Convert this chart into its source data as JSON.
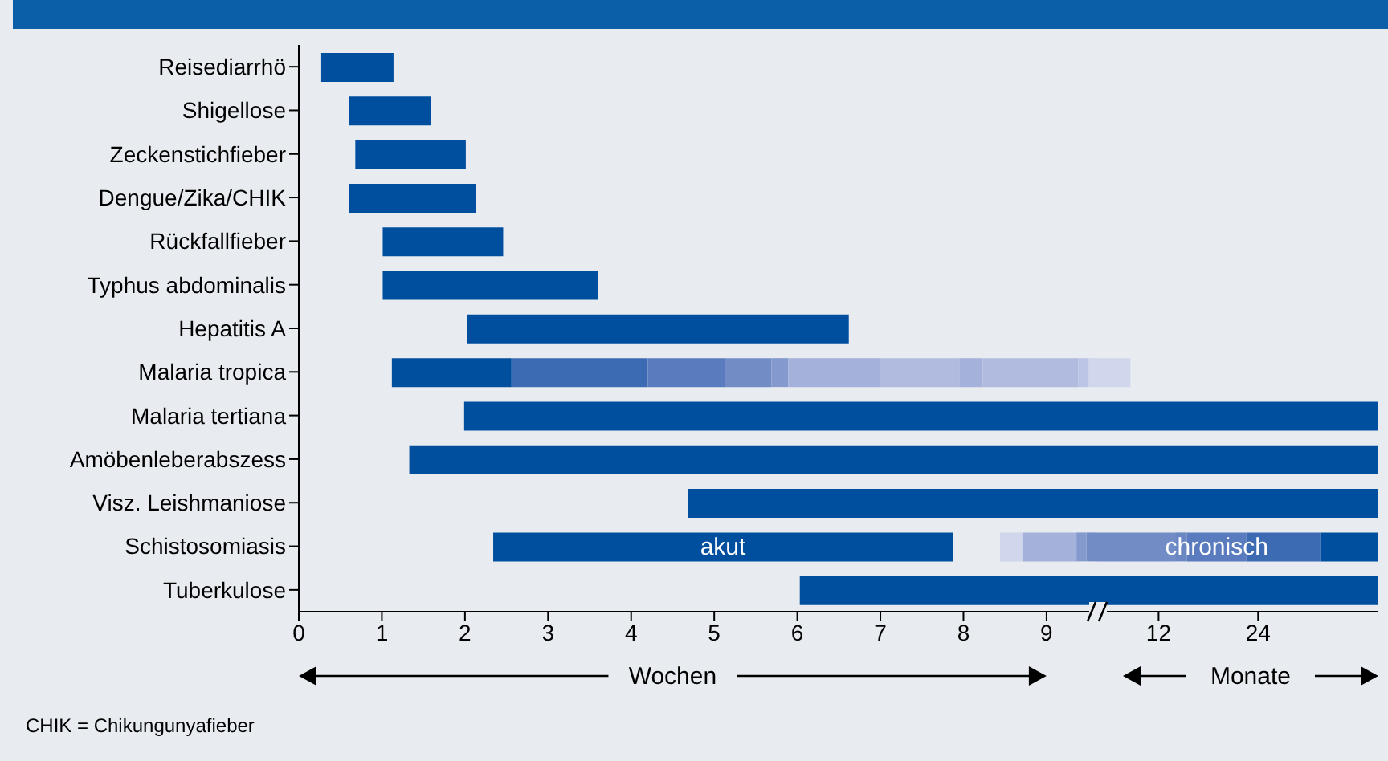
{
  "chart_data": [
    {
      "type": "bar",
      "orientation": "horizontal",
      "xlabel": "Wochen",
      "categories": [
        "Reisediarrhö",
        "Shigellose",
        "Zeckenstichfieber",
        "Dengue/Zika/CHIK",
        "Rückfallfieber",
        "Typhus abdominalis",
        "Hepatitis A",
        "Malaria tropica",
        "Malaria tertiana",
        "Amöbenleberabszess",
        "Visz. Leishmaniose",
        "Schistosomiasis",
        "Tuberkulose"
      ],
      "xlim": [
        0,
        9.61
      ],
      "xticks": [
        0,
        1,
        2,
        3,
        4,
        5,
        6,
        7,
        8,
        9
      ],
      "series": [
        {
          "base": [
            0.27,
            0.6,
            0.68,
            0.6,
            1.01,
            1.01,
            2.03,
            1.12,
            1.99,
            1.33,
            4.68,
            2.34,
            6.03
          ],
          "values": [
            0.87,
            0.99,
            1.33,
            1.53,
            1.45,
            2.59,
            4.59,
            1.44,
            7.62,
            8.28,
            4.93,
            5.53,
            3.58
          ],
          "colors": [
            "#004f9f",
            "#004f9f",
            "#004f9f",
            "#004f9f",
            "#004f9f",
            "#004f9f",
            "#004f9f",
            "#004f9f",
            "#004f9f",
            "#004f9f",
            "#004f9f",
            "#004f9f",
            "#004f9f"
          ],
          "value_labels": [
            null,
            null,
            null,
            null,
            null,
            null,
            null,
            null,
            null,
            null,
            null,
            "akut",
            null
          ]
        },
        {
          "base": [
            null,
            null,
            null,
            null,
            null,
            null,
            null,
            2.56,
            null,
            null,
            null,
            8.44,
            null
          ],
          "values": [
            null,
            null,
            null,
            null,
            null,
            null,
            null,
            1.64,
            null,
            null,
            null,
            0.27,
            null
          ],
          "colors": [
            null,
            null,
            null,
            null,
            null,
            null,
            null,
            "#3d6bb3",
            null,
            null,
            null,
            "#d0d6ec",
            null
          ]
        },
        {
          "base": [
            null,
            null,
            null,
            null,
            null,
            null,
            null,
            4.2,
            null,
            null,
            null,
            8.71,
            null
          ],
          "values": [
            null,
            null,
            null,
            null,
            null,
            null,
            null,
            0.93,
            null,
            null,
            null,
            0.65,
            null
          ],
          "colors": [
            null,
            null,
            null,
            null,
            null,
            null,
            null,
            "#5a7bbd",
            null,
            null,
            null,
            "#a3b1db",
            null
          ]
        },
        {
          "base": [
            null,
            null,
            null,
            null,
            null,
            null,
            null,
            5.13,
            null,
            null,
            null,
            9.36,
            null
          ],
          "values": [
            null,
            null,
            null,
            null,
            null,
            null,
            null,
            0.56,
            null,
            null,
            null,
            0.12,
            null
          ],
          "colors": [
            null,
            null,
            null,
            null,
            null,
            null,
            null,
            "#728dc6",
            null,
            null,
            null,
            "#8499cd",
            null
          ]
        },
        {
          "base": [
            null,
            null,
            null,
            null,
            null,
            null,
            null,
            5.69,
            null,
            null,
            null,
            9.48,
            null
          ],
          "values": [
            null,
            null,
            null,
            null,
            null,
            null,
            null,
            0.2,
            null,
            null,
            null,
            0.13,
            null
          ],
          "colors": [
            null,
            null,
            null,
            null,
            null,
            null,
            null,
            "#8499cd",
            null,
            null,
            null,
            "#728dc6",
            null
          ]
        },
        {
          "base": [
            null,
            null,
            null,
            null,
            null,
            null,
            null,
            5.89,
            null,
            null,
            null,
            null,
            null
          ],
          "values": [
            null,
            null,
            null,
            null,
            null,
            null,
            null,
            1.1,
            null,
            null,
            null,
            null,
            null
          ],
          "colors": [
            null,
            null,
            null,
            null,
            null,
            null,
            null,
            "#a3b1db",
            null,
            null,
            null,
            null,
            null
          ]
        },
        {
          "base": [
            null,
            null,
            null,
            null,
            null,
            null,
            null,
            6.99,
            null,
            null,
            null,
            null,
            null
          ],
          "values": [
            null,
            null,
            null,
            null,
            null,
            null,
            null,
            0.96,
            null,
            null,
            null,
            null,
            null
          ],
          "colors": [
            null,
            null,
            null,
            null,
            null,
            null,
            null,
            "#b0bbdf",
            null,
            null,
            null,
            null,
            null
          ]
        },
        {
          "base": [
            null,
            null,
            null,
            null,
            null,
            null,
            null,
            7.95,
            null,
            null,
            null,
            null,
            null
          ],
          "values": [
            null,
            null,
            null,
            null,
            null,
            null,
            null,
            0.28,
            null,
            null,
            null,
            null,
            null
          ],
          "colors": [
            null,
            null,
            null,
            null,
            null,
            null,
            null,
            "#a3b1db",
            null,
            null,
            null,
            null,
            null
          ]
        },
        {
          "base": [
            null,
            null,
            null,
            null,
            null,
            null,
            null,
            8.23,
            null,
            null,
            null,
            null,
            null
          ],
          "values": [
            null,
            null,
            null,
            null,
            null,
            null,
            null,
            1.15,
            null,
            null,
            null,
            null,
            null
          ],
          "colors": [
            null,
            null,
            null,
            null,
            null,
            null,
            null,
            "#b0bbdf",
            null,
            null,
            null,
            null,
            null
          ]
        },
        {
          "base": [
            null,
            null,
            null,
            null,
            null,
            null,
            null,
            9.38,
            null,
            null,
            null,
            null,
            null
          ],
          "values": [
            null,
            null,
            null,
            null,
            null,
            null,
            null,
            0.13,
            null,
            null,
            null,
            null,
            null
          ],
          "colors": [
            null,
            null,
            null,
            null,
            null,
            null,
            null,
            "#bcc5e6",
            null,
            null,
            null,
            null,
            null
          ]
        },
        {
          "base": [
            null,
            null,
            null,
            null,
            null,
            null,
            null,
            9.51,
            null,
            null,
            null,
            null,
            null
          ],
          "values": [
            null,
            null,
            null,
            null,
            null,
            null,
            null,
            0.1,
            null,
            null,
            null,
            null,
            null
          ],
          "colors": [
            null,
            null,
            null,
            null,
            null,
            null,
            null,
            "#d0d6ec",
            null,
            null,
            null,
            null,
            null
          ]
        }
      ],
      "annotations": [
        "CHIK = Chikungunyafieber"
      ]
    },
    {
      "type": "bar",
      "orientation": "horizontal",
      "xlabel": "Monate",
      "xlim": [
        4.6,
        38.5
      ],
      "xticks": [
        12,
        24
      ],
      "series": [
        {
          "base": [
            null,
            null,
            null,
            null,
            null,
            null,
            null,
            4.6,
            4.6,
            4.6,
            4.6,
            4.6,
            4.6
          ],
          "values": [
            null,
            null,
            null,
            null,
            null,
            null,
            null,
            4,
            33.9,
            33.9,
            33.9,
            9.4,
            33.9
          ],
          "colors": [
            null,
            null,
            null,
            null,
            null,
            null,
            null,
            "#d0d6ec",
            "#004f9f",
            "#004f9f",
            "#004f9f",
            "#728dc6",
            "#004f9f"
          ]
        },
        {
          "base": [
            null,
            null,
            null,
            null,
            null,
            null,
            null,
            null,
            null,
            null,
            null,
            14,
            null
          ],
          "values": [
            null,
            null,
            null,
            null,
            null,
            null,
            null,
            null,
            null,
            null,
            null,
            1.4,
            null
          ],
          "colors": [
            null,
            null,
            null,
            null,
            null,
            null,
            null,
            null,
            null,
            null,
            null,
            "#6a86c3",
            null
          ]
        },
        {
          "base": [
            null,
            null,
            null,
            null,
            null,
            null,
            null,
            null,
            null,
            null,
            null,
            15.4,
            null
          ],
          "values": [
            null,
            null,
            null,
            null,
            null,
            null,
            null,
            null,
            null,
            null,
            null,
            7.2,
            null
          ],
          "colors": [
            null,
            null,
            null,
            null,
            null,
            null,
            null,
            null,
            null,
            null,
            null,
            "#5a7bbd",
            null
          ],
          "value_labels": [
            null,
            null,
            null,
            null,
            null,
            null,
            null,
            null,
            null,
            null,
            null,
            "chronisch",
            null
          ]
        },
        {
          "base": [
            null,
            null,
            null,
            null,
            null,
            null,
            null,
            null,
            null,
            null,
            null,
            22.6,
            null
          ],
          "values": [
            null,
            null,
            null,
            null,
            null,
            null,
            null,
            null,
            null,
            null,
            null,
            8.9,
            null
          ],
          "colors": [
            null,
            null,
            null,
            null,
            null,
            null,
            null,
            null,
            null,
            null,
            null,
            "#3d6bb3",
            null
          ]
        },
        {
          "base": [
            null,
            null,
            null,
            null,
            null,
            null,
            null,
            null,
            null,
            null,
            null,
            31.5,
            null
          ],
          "values": [
            null,
            null,
            null,
            null,
            null,
            null,
            null,
            null,
            null,
            null,
            null,
            7,
            null
          ],
          "colors": [
            null,
            null,
            null,
            null,
            null,
            null,
            null,
            null,
            null,
            null,
            null,
            "#004f9f",
            null
          ]
        }
      ]
    }
  ]
}
